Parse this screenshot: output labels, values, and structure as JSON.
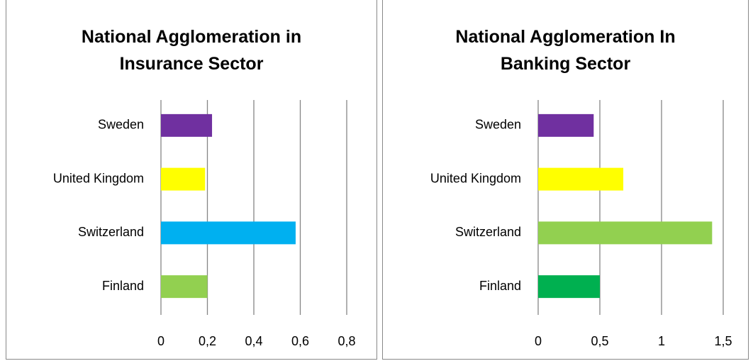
{
  "chart_data": [
    {
      "type": "bar",
      "orientation": "horizontal",
      "title": "National Agglomeration in Insurance Sector",
      "categories": [
        "Sweden",
        "United Kingdom",
        "Switzerland",
        "Finland"
      ],
      "values": [
        0.22,
        0.19,
        0.58,
        0.2
      ],
      "colors": [
        "#7030a0",
        "#ffff00",
        "#00b0f0",
        "#92d050"
      ],
      "xlim": [
        0,
        0.8
      ],
      "xticks": [
        0,
        {
          "value": 0.2,
          "label": "0,2"
        },
        {
          "value": 0.4,
          "label": "0,4"
        },
        {
          "value": 0.6,
          "label": "0,6"
        },
        {
          "value": 0.8,
          "label": "0,8"
        }
      ],
      "grid": true
    },
    {
      "type": "bar",
      "orientation": "horizontal",
      "title": "National Agglomeration In Banking Sector",
      "categories": [
        "Sweden",
        "United Kingdom",
        "Switzerland",
        "Finland"
      ],
      "values": [
        0.45,
        0.69,
        1.41,
        0.5
      ],
      "colors": [
        "#7030a0",
        "#ffff00",
        "#92d050",
        "#00b050"
      ],
      "xlim": [
        0,
        1.5
      ],
      "xticks": [
        0,
        {
          "value": 0.5,
          "label": "0,5"
        },
        1,
        {
          "value": 1.5,
          "label": "1,5"
        }
      ],
      "grid": true
    }
  ]
}
